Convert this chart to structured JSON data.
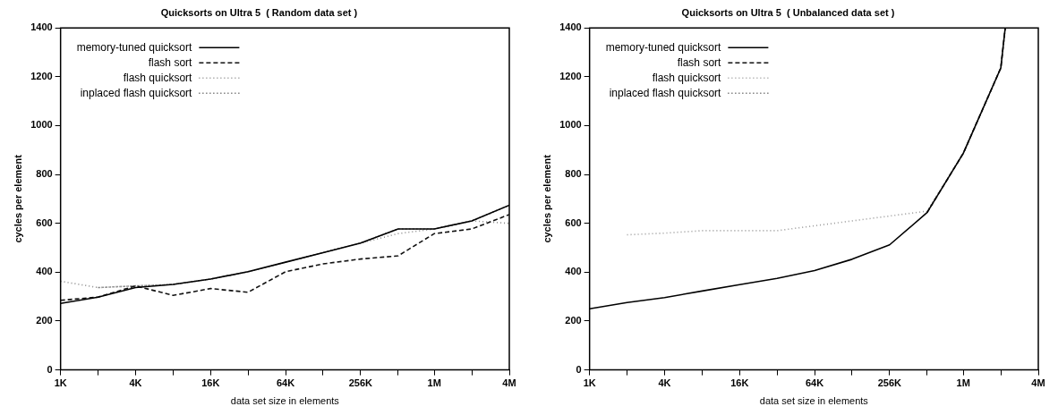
{
  "chart_data": [
    {
      "type": "line",
      "title": "Quicksorts on Ultra 5  ( Random data set )",
      "xlabel": "data set size in elements",
      "ylabel": "cycles per element",
      "log": "x",
      "legend": "top left",
      "grid": false,
      "marker": "none",
      "x": [
        1000,
        2000,
        4000,
        8000,
        16000,
        32000,
        64000,
        128000,
        256000,
        512000,
        1000000,
        2000000,
        4000000
      ],
      "xlim": [
        1000,
        4000000
      ],
      "xticks": [
        {
          "value": 1000,
          "label": "1K"
        },
        {
          "value": 2000,
          "label": null
        },
        {
          "value": 4000,
          "label": "4K"
        },
        {
          "value": 8000,
          "label": null
        },
        {
          "value": 16000,
          "label": "16K"
        },
        {
          "value": 32000,
          "label": null
        },
        {
          "value": 64000,
          "label": "64K"
        },
        {
          "value": 128000,
          "label": null
        },
        {
          "value": 256000,
          "label": "256K"
        },
        {
          "value": 512000,
          "label": null
        },
        {
          "value": 1000000,
          "label": "1M"
        },
        {
          "value": 2000000,
          "label": null
        },
        {
          "value": 4000000,
          "label": "4M"
        }
      ],
      "ylim": [
        0,
        1400
      ],
      "yticks": [
        0,
        200,
        400,
        600,
        800,
        1000,
        1200,
        1400
      ],
      "series": [
        {
          "name": "memory-tuned quicksort",
          "color": "#000000",
          "line_style": "solid",
          "values": [
            272,
            298,
            337,
            350,
            372,
            402,
            441,
            480,
            519,
            577,
            577,
            610,
            674
          ]
        },
        {
          "name": "flash sort",
          "color": "#111111",
          "line_style": "dashed",
          "values": [
            285,
            298,
            344,
            305,
            333,
            318,
            402,
            434,
            454,
            467,
            558,
            577,
            636
          ]
        },
        {
          "name": "flash quicksort",
          "color": "#888888",
          "line_style": "dotted",
          "values": [
            363,
            337,
            344,
            350,
            372,
            402,
            441,
            480,
            519,
            558,
            577,
            610,
            600
          ]
        },
        {
          "name": "inplaced flash quicksort",
          "color": "#444444",
          "line_style": "dotted",
          "values": [
            null,
            337,
            344,
            350,
            372,
            402,
            441,
            480,
            519,
            577,
            577,
            610,
            674
          ]
        }
      ]
    },
    {
      "type": "line",
      "title": "Quicksorts on Ultra 5  ( Unbalanced data set )",
      "xlabel": "data set size in elements",
      "ylabel": "cycles per element",
      "log": "x",
      "legend": "top left",
      "grid": false,
      "marker": "none",
      "x": [
        1000,
        2000,
        4000,
        8000,
        16000,
        32000,
        64000,
        128000,
        256000,
        512000,
        1000000,
        2000000,
        2170000
      ],
      "xlim": [
        1000,
        4000000
      ],
      "xticks": [
        {
          "value": 1000,
          "label": "1K"
        },
        {
          "value": 2000,
          "label": null
        },
        {
          "value": 4000,
          "label": "4K"
        },
        {
          "value": 8000,
          "label": null
        },
        {
          "value": 16000,
          "label": "16K"
        },
        {
          "value": 32000,
          "label": null
        },
        {
          "value": 64000,
          "label": "64K"
        },
        {
          "value": 128000,
          "label": null
        },
        {
          "value": 256000,
          "label": "256K"
        },
        {
          "value": 512000,
          "label": null
        },
        {
          "value": 1000000,
          "label": "1M"
        },
        {
          "value": 2000000,
          "label": null
        },
        {
          "value": 4000000,
          "label": "4M"
        }
      ],
      "ylim": [
        0,
        1400
      ],
      "yticks": [
        0,
        200,
        400,
        600,
        800,
        1000,
        1200,
        1400
      ],
      "series": [
        {
          "name": "memory-tuned quicksort",
          "color": "#000000",
          "line_style": "solid",
          "values": [
            250,
            276,
            296,
            323,
            349,
            375,
            407,
            453,
            512,
            644,
            887,
            1236,
            1400
          ]
        },
        {
          "name": "flash sort",
          "color": "#111111",
          "line_style": "dashed",
          "values": [
            null,
            null,
            null,
            null,
            null,
            null,
            null,
            null,
            null,
            644,
            887,
            1236,
            1400
          ]
        },
        {
          "name": "flash quicksort",
          "color": "#999999",
          "line_style": "dotted",
          "values": [
            null,
            553,
            560,
            570,
            570,
            570,
            590,
            610,
            630,
            650,
            887,
            1236,
            1400
          ]
        },
        {
          "name": "inplaced flash quicksort",
          "color": "#444444",
          "line_style": "dotted",
          "values": [
            null,
            null,
            null,
            null,
            null,
            null,
            null,
            null,
            null,
            null,
            null,
            null,
            null
          ]
        }
      ]
    }
  ]
}
